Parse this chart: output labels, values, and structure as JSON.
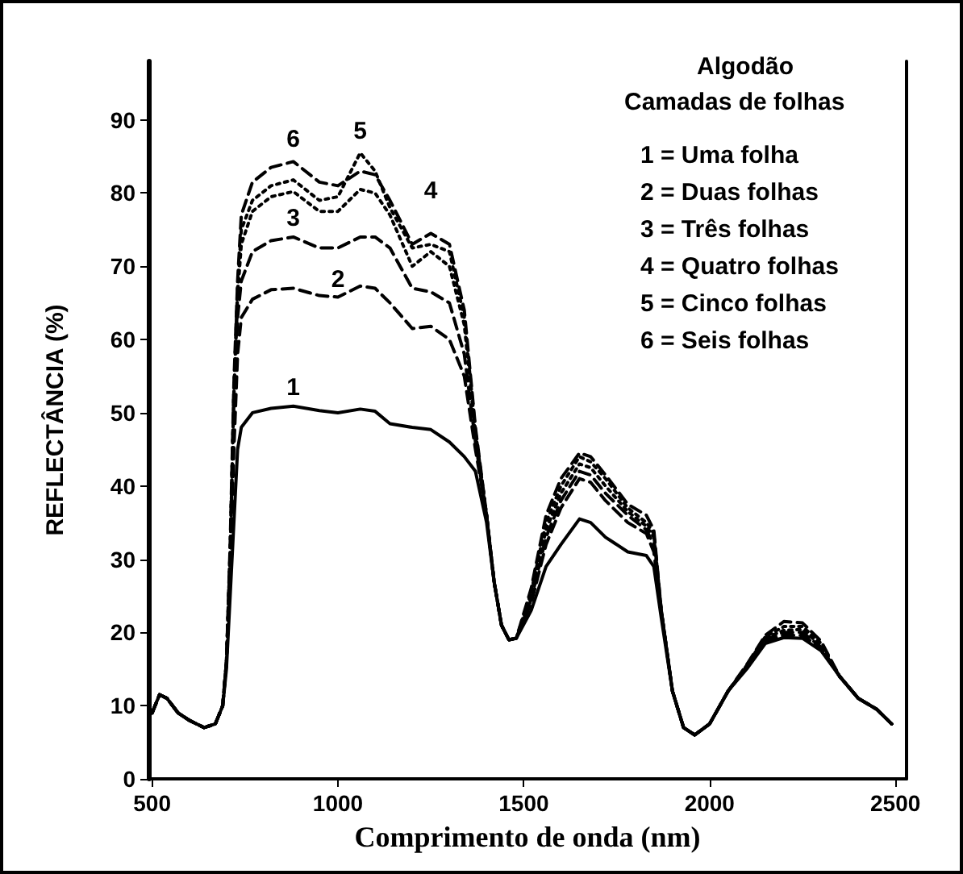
{
  "chart_data": {
    "type": "line",
    "xlabel": "Comprimento de onda (nm)",
    "ylabel": "REFLECTÂNCIA (%)",
    "x": [
      500,
      520,
      540,
      570,
      600,
      640,
      670,
      690,
      700,
      710,
      720,
      730,
      740,
      770,
      820,
      880,
      950,
      1000,
      1060,
      1100,
      1140,
      1200,
      1250,
      1300,
      1340,
      1370,
      1400,
      1420,
      1440,
      1460,
      1480,
      1520,
      1560,
      1600,
      1650,
      1680,
      1720,
      1780,
      1830,
      1850,
      1870,
      1900,
      1930,
      1960,
      2000,
      2050,
      2100,
      2150,
      2200,
      2250,
      2300,
      2350,
      2400,
      2450,
      2490
    ],
    "series": [
      {
        "name": "1",
        "color": "#000000",
        "line_style": "solid",
        "values": [
          9,
          11.5,
          11,
          9,
          8,
          7,
          7.5,
          10,
          15,
          25,
          35,
          45,
          48,
          50,
          50.6,
          50.9,
          50.3,
          50,
          50.5,
          50.2,
          48.5,
          48,
          47.7,
          46,
          44,
          42,
          35,
          27,
          21,
          19,
          19.2,
          23,
          29,
          32,
          35.5,
          35,
          33,
          31,
          30.5,
          29,
          22,
          12,
          7,
          6,
          7.5,
          12,
          15,
          18.5,
          19.3,
          19.2,
          17.5,
          14,
          11,
          9.5,
          7.5
        ]
      },
      {
        "name": "2",
        "color": "#000000",
        "line_style": "dashed",
        "values": [
          9,
          11.5,
          11,
          9,
          8,
          7,
          7.5,
          10,
          16,
          28,
          45,
          58,
          63,
          65.5,
          66.8,
          67,
          66,
          65.8,
          67.3,
          67,
          65,
          61.5,
          61.8,
          60,
          55,
          45,
          36,
          27,
          21,
          19,
          19.2,
          24,
          32,
          37,
          41,
          40.5,
          38,
          35,
          33.5,
          31,
          23,
          12,
          7,
          6,
          7.5,
          12,
          15.2,
          18.8,
          19.6,
          19.6,
          17.8,
          14,
          11,
          9.5,
          7.5
        ]
      },
      {
        "name": "3",
        "color": "#000000",
        "line_style": "dashed",
        "values": [
          9,
          11.5,
          11,
          9,
          8,
          7,
          7.5,
          10,
          16,
          30,
          50,
          63,
          68,
          72,
          73.5,
          74,
          72.5,
          72.5,
          74,
          74,
          72.5,
          67,
          66.5,
          65,
          58,
          46,
          36,
          27,
          21,
          19,
          19.2,
          24.5,
          33,
          38,
          42,
          41.5,
          39,
          36,
          34,
          32,
          23,
          12,
          7,
          6,
          7.5,
          12,
          15.3,
          19,
          20,
          20,
          18,
          14,
          11,
          9.5,
          7.5
        ]
      },
      {
        "name": "4",
        "color": "#000000",
        "line_style": "dotted",
        "values": [
          9,
          11.5,
          11,
          9,
          8,
          7,
          7.5,
          10,
          16,
          31,
          52,
          66,
          73,
          77.5,
          79.5,
          80.2,
          77.5,
          77.5,
          80.5,
          80,
          77,
          70,
          72,
          70,
          62,
          47,
          36,
          27,
          21,
          19,
          19.2,
          25,
          34,
          39,
          43,
          42.5,
          40,
          36.5,
          34.5,
          33,
          23,
          12,
          7,
          6,
          7.5,
          12,
          15.4,
          19.2,
          20.3,
          20.4,
          18.2,
          14,
          11,
          9.5,
          7.5
        ]
      },
      {
        "name": "5",
        "color": "#000000",
        "line_style": "dotted",
        "values": [
          9,
          11.5,
          11,
          9,
          8,
          7,
          7.5,
          10,
          16,
          31,
          53,
          67,
          75,
          79,
          81,
          81.8,
          79,
          79.5,
          85.5,
          83,
          78,
          72.5,
          73,
          72,
          63,
          47.5,
          36,
          27,
          21,
          19,
          19.2,
          25.5,
          35,
          40,
          44,
          43.3,
          41,
          37,
          35,
          33.5,
          23,
          12,
          7,
          6,
          7.5,
          12,
          15.5,
          19.4,
          20.8,
          20.8,
          18.5,
          14,
          11,
          9.5,
          7.5
        ]
      },
      {
        "name": "6",
        "color": "#000000",
        "line_style": "dashed",
        "values": [
          9,
          11.5,
          11,
          9,
          8,
          7,
          7.5,
          10,
          16,
          32,
          54,
          68,
          77,
          81.5,
          83.5,
          84.3,
          81.5,
          81,
          83,
          82.5,
          79,
          73,
          74.5,
          73,
          64,
          48,
          36,
          27,
          21,
          19,
          19.2,
          26,
          36,
          41,
          44.5,
          44,
          41.5,
          37.5,
          36,
          34,
          23,
          12,
          7,
          6,
          7.5,
          12,
          15.6,
          19.6,
          21.5,
          21.3,
          18.8,
          14,
          11,
          9.5,
          7.5
        ]
      }
    ],
    "xlim": [
      490,
      2530
    ],
    "xticks": [
      500,
      1000,
      1500,
      2000,
      2500
    ],
    "ylim": [
      0,
      98
    ],
    "yticks": [
      0,
      10,
      20,
      30,
      40,
      50,
      60,
      70,
      80,
      90
    ],
    "grid": false,
    "legend": false,
    "marker": "none",
    "annotations": [
      "Algodão",
      "Camadas de folhas",
      "1 = Uma folha",
      "2 = Duas folhas",
      "3 = Três folhas",
      "4 = Quatro folhas",
      "5 = Cinco folhas",
      "6 = Seis folhas"
    ]
  }
}
